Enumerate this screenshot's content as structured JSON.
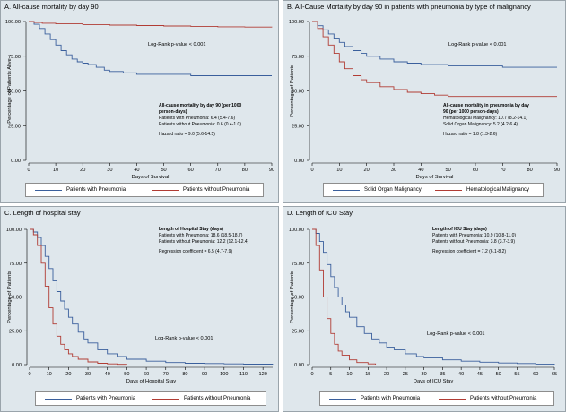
{
  "colors": {
    "pneumonia": "#3a5f9c",
    "without": "#b13c34",
    "solid": "#3a5f9c",
    "hematologic": "#b13c34",
    "background": "#dfe7ec"
  },
  "chart_data": [
    {
      "type": "line",
      "title": "A. All-cause mortality by day 90",
      "xlabel": "Days of Survival",
      "ylabel": "Percentage of Patients Alive",
      "xlim": [
        0,
        90
      ],
      "ylim": [
        0,
        100
      ],
      "xticks": [
        "0",
        "10",
        "20",
        "30",
        "40",
        "50",
        "60",
        "70",
        "80",
        "90"
      ],
      "yticks": [
        "0.00",
        "25.00",
        "50.00",
        "75.00",
        "100.00"
      ],
      "grid": false,
      "pvalue": "Log-Rank p-value < 0.001",
      "annotation": {
        "heading1": "All-cause mortality by day 90 (per 1000",
        "heading2": "person-days)",
        "line1": "Patients with Pneumonia: 6.4 (5.4-7.6)",
        "line2": "Patients without Pneumonia:  0.6 (0.4-1.0)",
        "line3": "Hazard ratio = 9.0 (5.6-14.5)"
      },
      "legend": [
        "Patients with Pneumonia",
        "Patients without Pneumonia"
      ],
      "series": [
        {
          "name": "Patients with Pneumonia",
          "x": [
            0,
            2,
            4,
            6,
            8,
            10,
            12,
            14,
            16,
            18,
            20,
            22,
            25,
            28,
            30,
            35,
            40,
            50,
            60,
            70,
            80,
            90
          ],
          "y": [
            100,
            98,
            95,
            91,
            87,
            83,
            79,
            76,
            73,
            71,
            70,
            69,
            67,
            65,
            64,
            63,
            62,
            62,
            61,
            61,
            61,
            61
          ]
        },
        {
          "name": "Patients without Pneumonia",
          "x": [
            0,
            2,
            5,
            10,
            20,
            30,
            40,
            50,
            60,
            70,
            80,
            90
          ],
          "y": [
            100,
            99.3,
            98.8,
            98.3,
            97.8,
            97.4,
            97.1,
            96.8,
            96.5,
            96.2,
            96,
            95.8
          ]
        }
      ]
    },
    {
      "type": "line",
      "title": "B. All-Cause Mortality by day 90 in patients with pneumonia by type of malignancy",
      "xlabel": "Days of Survival",
      "ylabel": "Percentage of Patients",
      "xlim": [
        0,
        90
      ],
      "ylim": [
        0,
        100
      ],
      "xticks": [
        "0",
        "10",
        "20",
        "30",
        "40",
        "50",
        "60",
        "70",
        "80",
        "90"
      ],
      "yticks": [
        "0.00",
        "25.00",
        "50.00",
        "75.00",
        "100.00"
      ],
      "grid": false,
      "pvalue": "Log-Rank p-value < 0.001",
      "annotation": {
        "heading1": "All-cause mortality in pneumonia by day",
        "heading2": "90 (per 1000 person-days)",
        "line1": "Hematological Malignancy: 10.7 (8.2-14.1)",
        "line2": "Solid Organ Malignancy:  5.2 (4.2-6.4)",
        "line3": "Hazard ratio = 1.8 (1.3-2.6)"
      },
      "legend": [
        "Solid Organ Malignancy",
        "Hematological Malignancy"
      ],
      "series": [
        {
          "name": "Solid Organ Malignancy",
          "x": [
            0,
            2,
            4,
            6,
            8,
            10,
            12,
            15,
            18,
            20,
            25,
            30,
            35,
            40,
            50,
            60,
            70,
            80,
            90
          ],
          "y": [
            100,
            97,
            94,
            91,
            88,
            85,
            82,
            79,
            77,
            75,
            73,
            71,
            70,
            69,
            68,
            68,
            67,
            67,
            67
          ]
        },
        {
          "name": "Hematological Malignancy",
          "x": [
            0,
            2,
            4,
            6,
            8,
            10,
            12,
            15,
            18,
            20,
            25,
            30,
            35,
            40,
            45,
            50,
            60,
            70,
            80,
            90
          ],
          "y": [
            100,
            95,
            89,
            83,
            77,
            71,
            66,
            61,
            58,
            56,
            53,
            51,
            49,
            48,
            47,
            46,
            46,
            46,
            46,
            46
          ]
        }
      ]
    },
    {
      "type": "line",
      "title": "C. Length of hospital stay",
      "xlabel": "Days of Hospital Stay",
      "ylabel": "Percentage of Patients",
      "xlim": [
        0,
        125
      ],
      "ylim": [
        0,
        100
      ],
      "xticks": [
        "0",
        "10",
        "20",
        "30",
        "40",
        "50",
        "60",
        "70",
        "80",
        "90",
        "100",
        "110",
        "120"
      ],
      "yticks": [
        "0.00",
        "25.00",
        "50.00",
        "75.00",
        "100.00"
      ],
      "grid": false,
      "pvalue": "Log-Rank p-value < 0.001",
      "annotation": {
        "heading1": "Length of Hospital Stay (days)",
        "heading2": "",
        "line1": "Patients with Pneumonia: 18.6 (18.5-18.7)",
        "line2": "Patients without Pneumonia: 12.2 (12.1-12.4)",
        "line3": "Regression coefficient = 6.5 (4.7-7.9)"
      },
      "legend": [
        "Patients with Pneumonia",
        "Patients without Pneumonia"
      ],
      "series": [
        {
          "name": "Patients with Pneumonia",
          "x": [
            0,
            2,
            4,
            6,
            8,
            10,
            12,
            14,
            16,
            18,
            20,
            22,
            25,
            28,
            30,
            35,
            40,
            45,
            50,
            60,
            70,
            80,
            90,
            100,
            110,
            125
          ],
          "y": [
            100,
            98,
            94,
            88,
            80,
            71,
            62,
            54,
            47,
            41,
            35,
            30,
            24,
            19,
            16,
            11,
            8,
            6,
            4,
            2.5,
            1.5,
            1,
            0.8,
            0.5,
            0.3,
            0.2
          ]
        },
        {
          "name": "Patients without Pneumonia",
          "x": [
            0,
            2,
            4,
            6,
            8,
            10,
            12,
            14,
            16,
            18,
            20,
            22,
            25,
            30,
            35,
            40,
            45,
            50
          ],
          "y": [
            100,
            96,
            88,
            75,
            58,
            42,
            30,
            21,
            15,
            11,
            8,
            6,
            4,
            2,
            1,
            0.5,
            0.2,
            0
          ]
        }
      ]
    },
    {
      "type": "line",
      "title": "D. Length of ICU Stay",
      "xlabel": "Days of ICU Stay",
      "ylabel": "Percentage of Patients",
      "xlim": [
        0,
        65
      ],
      "ylim": [
        0,
        100
      ],
      "xticks": [
        "0",
        "5",
        "10",
        "15",
        "20",
        "25",
        "30",
        "35",
        "40",
        "45",
        "50",
        "55",
        "60",
        "65"
      ],
      "yticks": [
        "0.00",
        "25.00",
        "50.00",
        "75.00",
        "100.00"
      ],
      "grid": false,
      "pvalue": "Log-Rank p-value < 0.001",
      "annotation": {
        "heading1": "Length of ICU Stay (days)",
        "heading2": "",
        "line1": "Patients with Pneumonia: 10.9 (10.8-11.0)",
        "line2": "Patients without Pneumonia:  3.8 (3.7-3.9)",
        "line3": "Regression coefficient = 7.2 (6.1-8.2)"
      },
      "legend": [
        "Patients with Pneumonia",
        "Patients without Pneumonia"
      ],
      "series": [
        {
          "name": "Patients with Pneumonia",
          "x": [
            0,
            1,
            2,
            3,
            4,
            5,
            6,
            7,
            8,
            9,
            10,
            12,
            14,
            16,
            18,
            20,
            22,
            25,
            28,
            30,
            35,
            40,
            45,
            50,
            55,
            60,
            65
          ],
          "y": [
            100,
            97,
            91,
            83,
            74,
            65,
            57,
            50,
            44,
            39,
            35,
            28,
            23,
            19,
            16,
            13,
            11,
            8,
            6,
            5,
            3.5,
            2.5,
            1.8,
            1.2,
            0.8,
            0.4,
            0
          ]
        },
        {
          "name": "Patients without Pneumonia",
          "x": [
            0,
            1,
            2,
            3,
            4,
            5,
            6,
            7,
            8,
            10,
            12,
            15,
            17
          ],
          "y": [
            100,
            88,
            70,
            50,
            34,
            23,
            15,
            10,
            7,
            3.5,
            1.5,
            0.5,
            0
          ]
        }
      ]
    }
  ]
}
